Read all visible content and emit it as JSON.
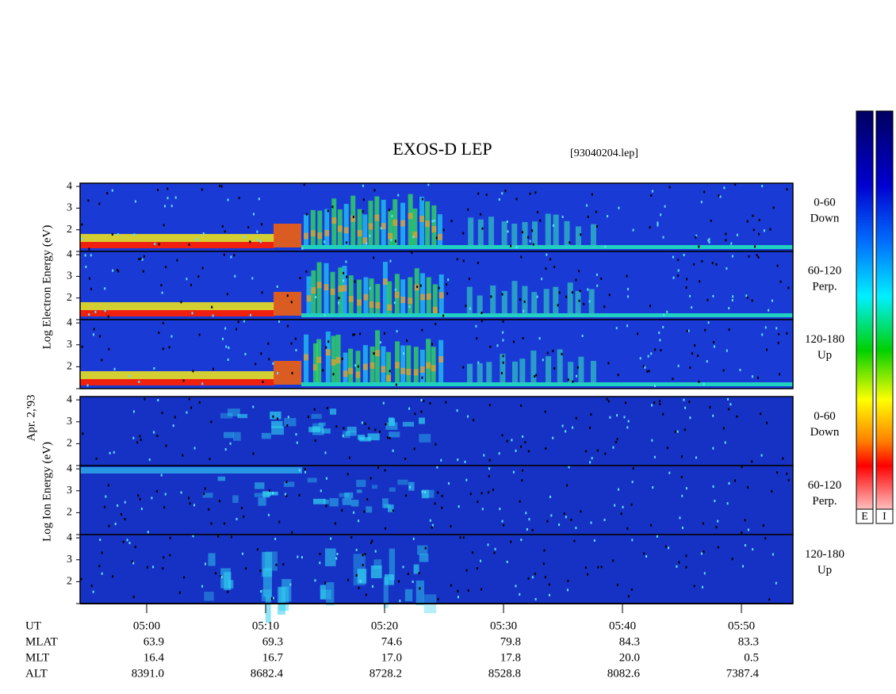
{
  "header": {
    "title": "EXOS-D LEP",
    "file": "[93040204.lep]"
  },
  "axis_labels": {
    "electron": "Log  Electron  Energy (eV)",
    "date": "Apr. 2,'93",
    "ion": "Log  Ion  Energy (eV)"
  },
  "energy_axis": {
    "ylim": [
      1,
      4.15
    ],
    "yticks": [
      1,
      2,
      3,
      4
    ],
    "labeled": [
      2,
      3,
      4
    ]
  },
  "panels": [
    {
      "group": "electron",
      "angle": "0-60",
      "direction": "Down"
    },
    {
      "group": "electron",
      "angle": "60-120",
      "direction": "Perp."
    },
    {
      "group": "electron",
      "angle": "120-180",
      "direction": "Up"
    },
    {
      "group": "ion",
      "angle": "0-60",
      "direction": "Down"
    },
    {
      "group": "ion",
      "angle": "60-120",
      "direction": "Perp."
    },
    {
      "group": "ion",
      "angle": "120-180",
      "direction": "Up"
    }
  ],
  "time_axis": {
    "xlim": [
      294.4,
      354.33
    ],
    "xticks": [
      {
        "value": 300,
        "label": "05:00"
      },
      {
        "value": 310,
        "label": "05:10"
      },
      {
        "value": 320,
        "label": "05:20"
      },
      {
        "value": 330,
        "label": "05:30"
      },
      {
        "value": 340,
        "label": "05:40"
      },
      {
        "value": 350,
        "label": "05:50"
      }
    ]
  },
  "ephemeris": {
    "row_labels": [
      "UT",
      "MLAT",
      "MLT",
      "ALT"
    ],
    "rows": [
      [
        "63.9",
        "69.3",
        "74.6",
        "79.8",
        "84.3",
        "83.3"
      ],
      [
        "16.4",
        "16.7",
        "17.0",
        "17.8",
        "20.0",
        "0.5"
      ],
      [
        "8391.0",
        "8682.4",
        "8728.2",
        "8528.8",
        "8082.6",
        "7387.4"
      ]
    ]
  },
  "colorbars": [
    "E",
    "I"
  ]
}
